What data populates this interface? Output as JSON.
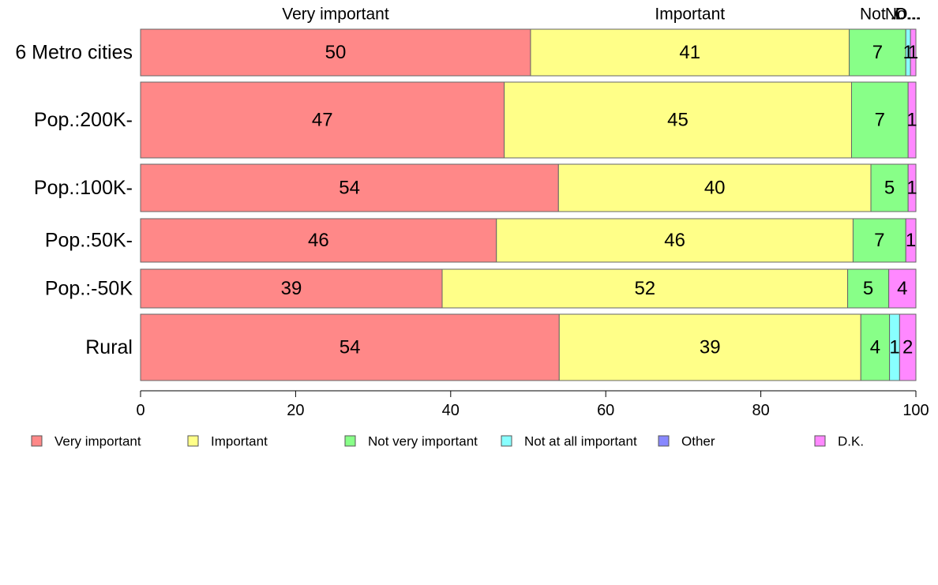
{
  "chart_data": {
    "type": "bar",
    "orientation": "horizontal",
    "stacked": true,
    "categories": [
      "6 Metro cities",
      "Pop.:200K-",
      "Pop.:100K-",
      "Pop.:50K-",
      "Pop.:-50K",
      "Rural"
    ],
    "series": [
      {
        "name": "Very important",
        "color": "#FF8888",
        "values": [
          50.3,
          46.9,
          53.9,
          45.9,
          38.9,
          54.0
        ]
      },
      {
        "name": "Important",
        "color": "#FFFF88",
        "values": [
          41.1,
          44.8,
          40.3,
          46.0,
          52.3,
          38.9
        ]
      },
      {
        "name": "Not very important",
        "color": "#88FF88",
        "values": [
          7.3,
          7.3,
          4.8,
          6.8,
          5.3,
          3.7
        ]
      },
      {
        "name": "Not at all important",
        "color": "#88FFFF",
        "values": [
          0.6,
          0.0,
          0.0,
          0.0,
          0.0,
          1.3
        ]
      },
      {
        "name": "Other",
        "color": "#8888FF",
        "values": [
          0.0,
          0.0,
          0.0,
          0.0,
          0.0,
          0.0
        ]
      },
      {
        "name": "D.K.",
        "color": "#FF88FF",
        "values": [
          0.7,
          1.0,
          1.0,
          1.3,
          3.5,
          2.1
        ]
      }
    ],
    "data_labels": [
      [
        "50",
        "41",
        "7",
        "1",
        "",
        "1"
      ],
      [
        "47",
        "45",
        "7",
        "",
        "",
        "1"
      ],
      [
        "54",
        "40",
        "5",
        "",
        "",
        "1"
      ],
      [
        "46",
        "46",
        "7",
        "",
        "",
        "1"
      ],
      [
        "39",
        "52",
        "5",
        "",
        "",
        "4"
      ],
      [
        "54",
        "39",
        "4",
        "1",
        "",
        "2"
      ]
    ],
    "top_labels": [
      "Very important",
      "Important",
      "Not ...",
      "No...",
      "O...",
      "D..."
    ],
    "xlim": [
      0,
      100
    ],
    "xticks": [
      "0",
      "20",
      "40",
      "60",
      "80",
      "100"
    ],
    "grid": false,
    "legend_position": "bottom"
  }
}
